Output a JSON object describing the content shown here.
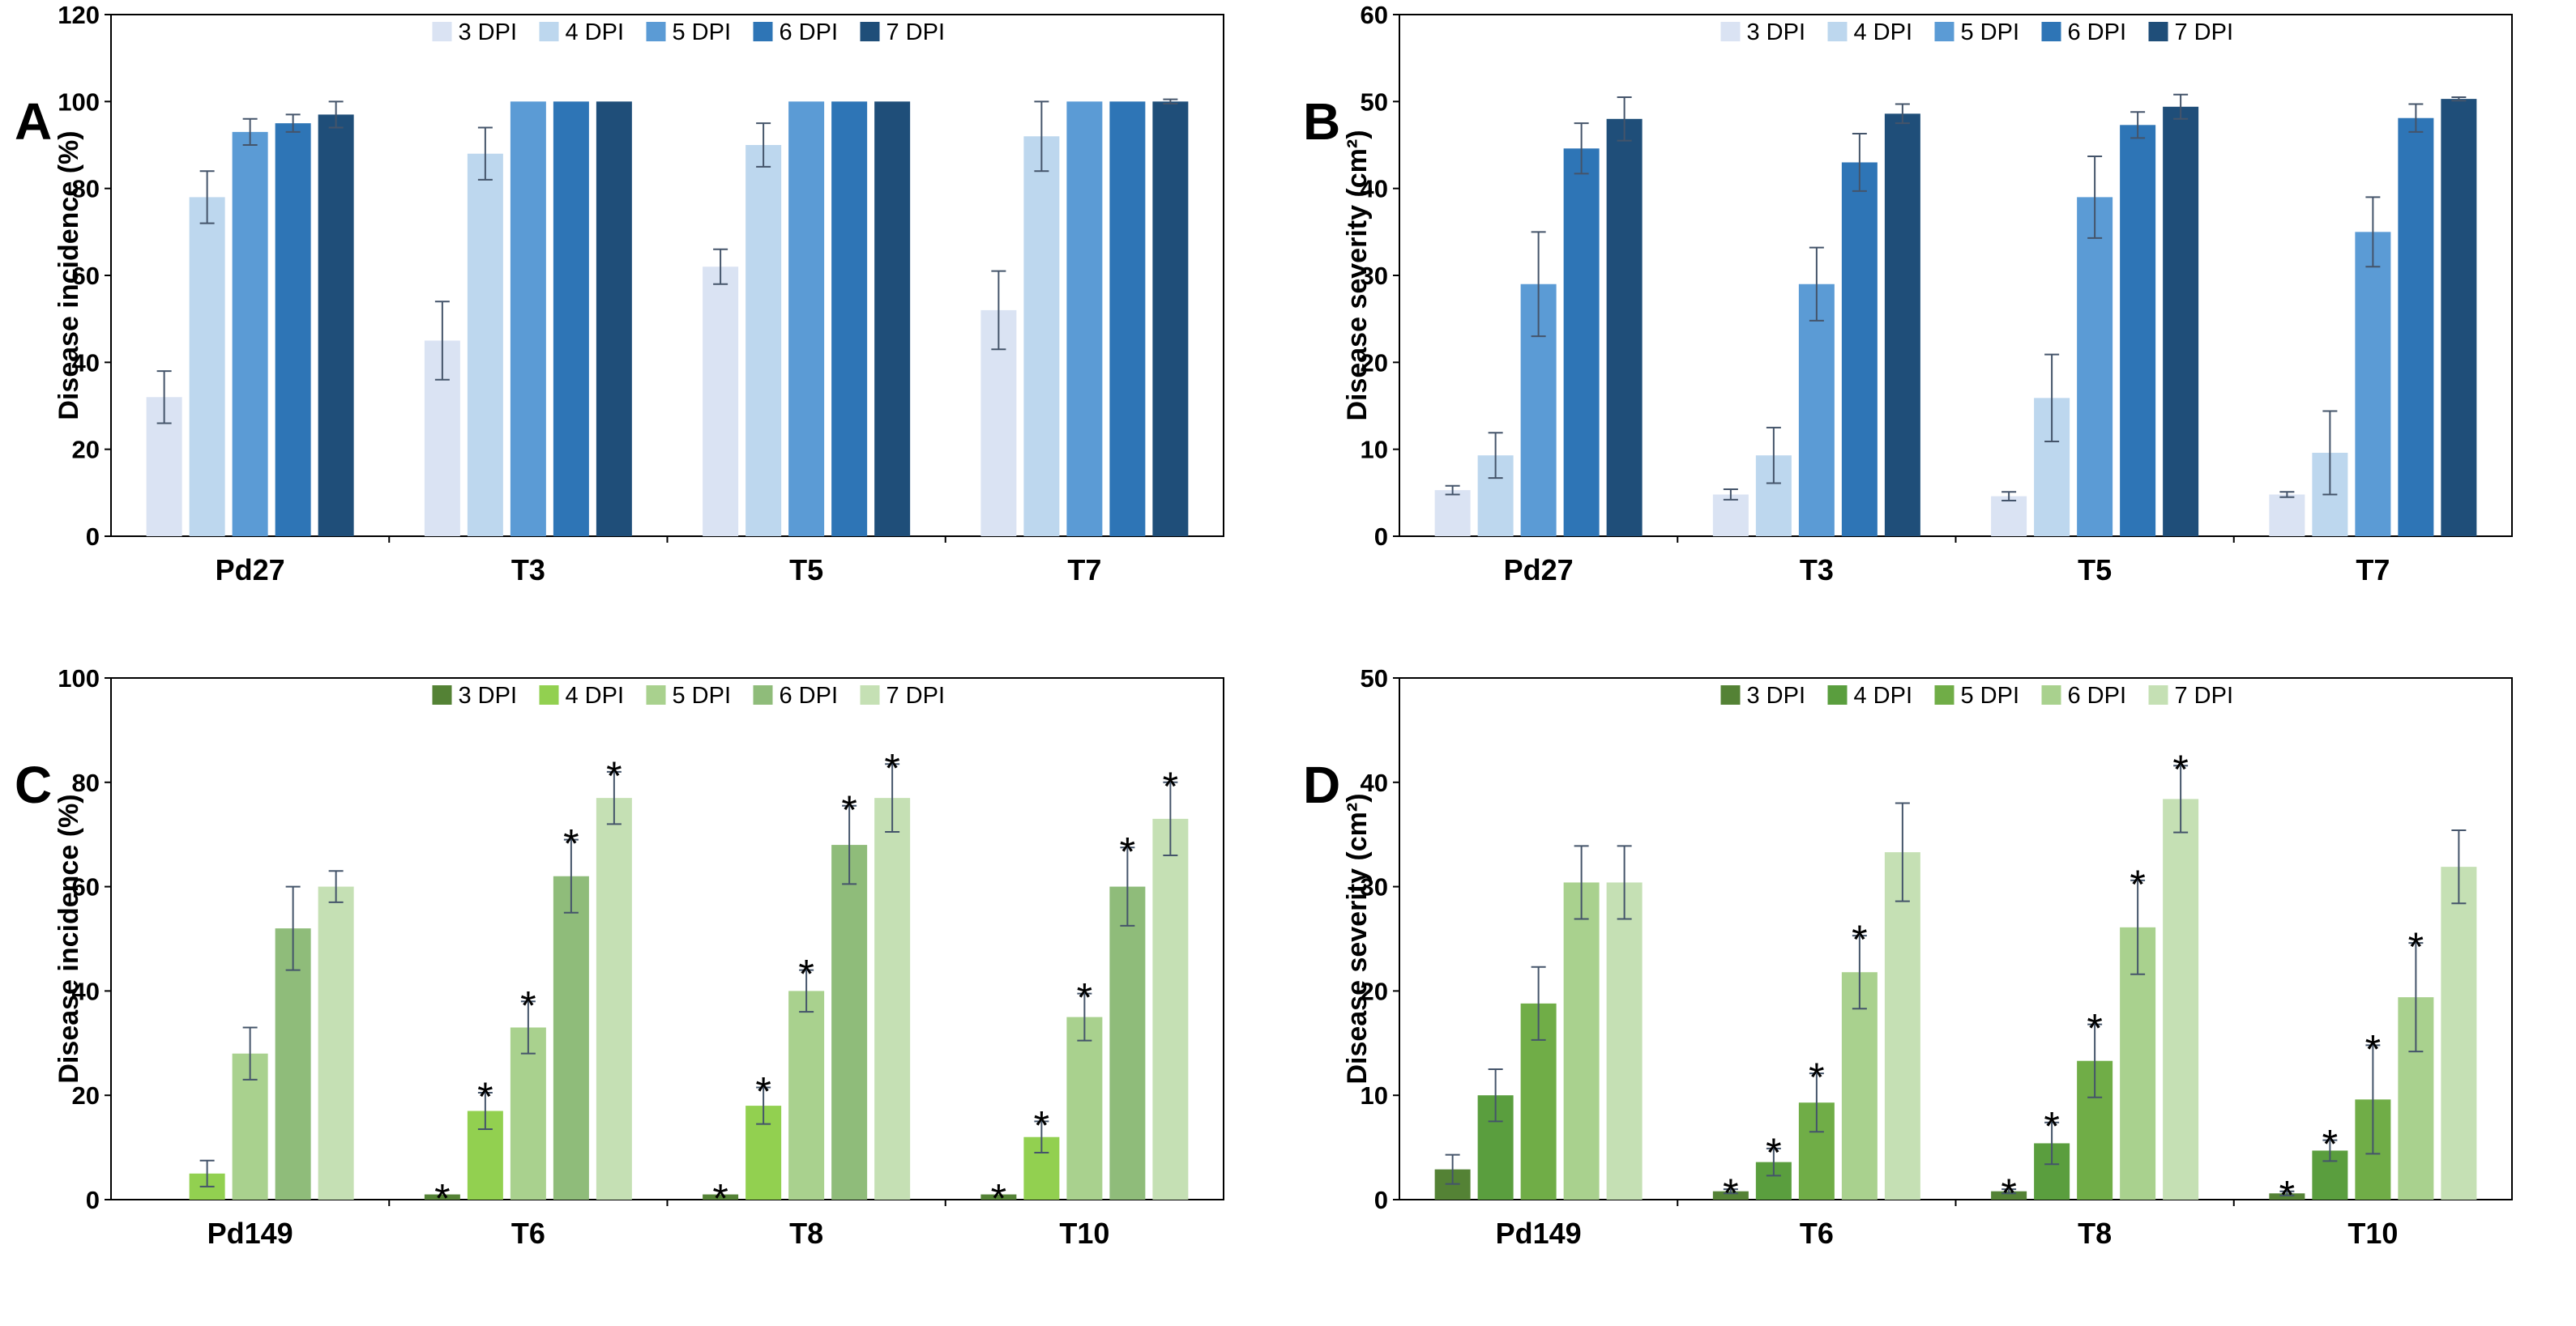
{
  "chart_data": [
    {
      "panel_label": "A",
      "type": "bar",
      "ylabel": "Disease incidence (%)",
      "ylim": [
        0,
        120
      ],
      "yticks": [
        0,
        20,
        40,
        60,
        80,
        100,
        120
      ],
      "categories": [
        "Pd27",
        "T3",
        "T5",
        "T7"
      ],
      "series": [
        {
          "name": "3 DPI",
          "color": "#dae3f3",
          "values": [
            32,
            45,
            62,
            52
          ],
          "errors": [
            6,
            9,
            4,
            9
          ],
          "sig": [
            false,
            false,
            false,
            false
          ]
        },
        {
          "name": "4 DPI",
          "color": "#bdd7ee",
          "values": [
            78,
            88,
            90,
            92
          ],
          "errors": [
            6,
            6,
            5,
            8
          ],
          "sig": [
            false,
            false,
            false,
            false
          ]
        },
        {
          "name": "5 DPI",
          "color": "#5b9bd5",
          "values": [
            93,
            100,
            100,
            100
          ],
          "errors": [
            3,
            0,
            0,
            0
          ],
          "sig": [
            false,
            false,
            false,
            false
          ]
        },
        {
          "name": "6 DPI",
          "color": "#2e75b6",
          "values": [
            95,
            100,
            100,
            100
          ],
          "errors": [
            2,
            0,
            0,
            0
          ],
          "sig": [
            false,
            false,
            false,
            false
          ]
        },
        {
          "name": "7 DPI",
          "color": "#1f4e79",
          "values": [
            97,
            100,
            100,
            100
          ],
          "errors": [
            3,
            0,
            0,
            0.5
          ],
          "sig": [
            false,
            false,
            false,
            false
          ]
        }
      ]
    },
    {
      "panel_label": "B",
      "type": "bar",
      "ylabel": "Disease severity (cm²)",
      "ylim": [
        0,
        60
      ],
      "yticks": [
        0,
        10,
        20,
        30,
        40,
        50,
        60
      ],
      "categories": [
        "Pd27",
        "T3",
        "T5",
        "T7"
      ],
      "series": [
        {
          "name": "3 DPI",
          "color": "#dae3f3",
          "values": [
            5.3,
            4.8,
            4.6,
            4.8
          ],
          "errors": [
            0.5,
            0.6,
            0.5,
            0.3
          ],
          "sig": [
            false,
            false,
            false,
            false
          ]
        },
        {
          "name": "4 DPI",
          "color": "#bdd7ee",
          "values": [
            9.3,
            9.3,
            15.9,
            9.6
          ],
          "errors": [
            2.6,
            3.2,
            5,
            4.8
          ],
          "sig": [
            false,
            false,
            false,
            false
          ]
        },
        {
          "name": "5 DPI",
          "color": "#5b9bd5",
          "values": [
            29,
            29,
            39,
            35
          ],
          "errors": [
            6,
            4.2,
            4.7,
            4
          ],
          "sig": [
            false,
            false,
            false,
            false
          ]
        },
        {
          "name": "6 DPI",
          "color": "#2e75b6",
          "values": [
            44.6,
            43,
            47.3,
            48.1
          ],
          "errors": [
            2.9,
            3.3,
            1.5,
            1.6
          ],
          "sig": [
            false,
            false,
            false,
            false
          ]
        },
        {
          "name": "7 DPI",
          "color": "#1f4e79",
          "values": [
            48,
            48.6,
            49.4,
            50.3
          ],
          "errors": [
            2.5,
            1.1,
            1.4,
            0.2
          ],
          "sig": [
            false,
            false,
            false,
            false
          ]
        }
      ]
    },
    {
      "panel_label": "C",
      "type": "bar",
      "ylabel": "Disease incidence (%)",
      "ylim": [
        0,
        100
      ],
      "yticks": [
        0,
        20,
        40,
        60,
        80,
        100
      ],
      "categories": [
        "Pd149",
        "T6",
        "T8",
        "T10"
      ],
      "series": [
        {
          "name": "3 DPI",
          "color": "#548235",
          "values": [
            0,
            1,
            1,
            1
          ],
          "errors": [
            0,
            0,
            0,
            0
          ],
          "sig": [
            false,
            true,
            true,
            true
          ]
        },
        {
          "name": "4 DPI",
          "color": "#92d050",
          "values": [
            5,
            17,
            18,
            12
          ],
          "errors": [
            2.5,
            3.5,
            3.5,
            3
          ],
          "sig": [
            false,
            true,
            true,
            true
          ]
        },
        {
          "name": "5 DPI",
          "color": "#a9d18e",
          "values": [
            28,
            33,
            40,
            35
          ],
          "errors": [
            5,
            5,
            4,
            4.5
          ],
          "sig": [
            false,
            true,
            true,
            true
          ]
        },
        {
          "name": "6 DPI",
          "color": "#8fbc7a",
          "values": [
            52,
            62,
            68,
            60
          ],
          "errors": [
            8,
            7,
            7.5,
            7.5
          ],
          "sig": [
            false,
            true,
            true,
            true
          ]
        },
        {
          "name": "7 DPI",
          "color": "#c5e0b4",
          "values": [
            60,
            77,
            77,
            73
          ],
          "errors": [
            3,
            5,
            6.5,
            7
          ],
          "sig": [
            false,
            true,
            true,
            true
          ]
        }
      ]
    },
    {
      "panel_label": "D",
      "type": "bar",
      "ylabel": "Disease severity (cm²)",
      "ylim": [
        0,
        50
      ],
      "yticks": [
        0,
        10,
        20,
        30,
        40,
        50
      ],
      "categories": [
        "Pd149",
        "T6",
        "T8",
        "T10"
      ],
      "series": [
        {
          "name": "3 DPI",
          "color": "#548235",
          "values": [
            2.9,
            0.8,
            0.8,
            0.6
          ],
          "errors": [
            1.4,
            0.2,
            0.2,
            0.2
          ],
          "sig": [
            false,
            true,
            true,
            true
          ]
        },
        {
          "name": "4 DPI",
          "color": "#5a9e3e",
          "values": [
            10,
            3.6,
            5.4,
            4.7
          ],
          "errors": [
            2.5,
            1.3,
            2,
            1
          ],
          "sig": [
            false,
            true,
            true,
            true
          ]
        },
        {
          "name": "5 DPI",
          "color": "#70ad47",
          "values": [
            18.8,
            9.3,
            13.3,
            9.6
          ],
          "errors": [
            3.5,
            2.8,
            3.5,
            5.2
          ],
          "sig": [
            false,
            true,
            true,
            true
          ]
        },
        {
          "name": "6 DPI",
          "color": "#a9d18e",
          "values": [
            30.4,
            21.8,
            26.1,
            19.4
          ],
          "errors": [
            3.5,
            3.5,
            4.5,
            5.2
          ],
          "sig": [
            false,
            true,
            true,
            true
          ]
        },
        {
          "name": "7 DPI",
          "color": "#c5e0b4",
          "values": [
            30.4,
            33.3,
            38.4,
            31.9
          ],
          "errors": [
            3.5,
            4.7,
            3.2,
            3.5
          ],
          "sig": [
            false,
            false,
            true,
            false
          ]
        }
      ]
    }
  ]
}
